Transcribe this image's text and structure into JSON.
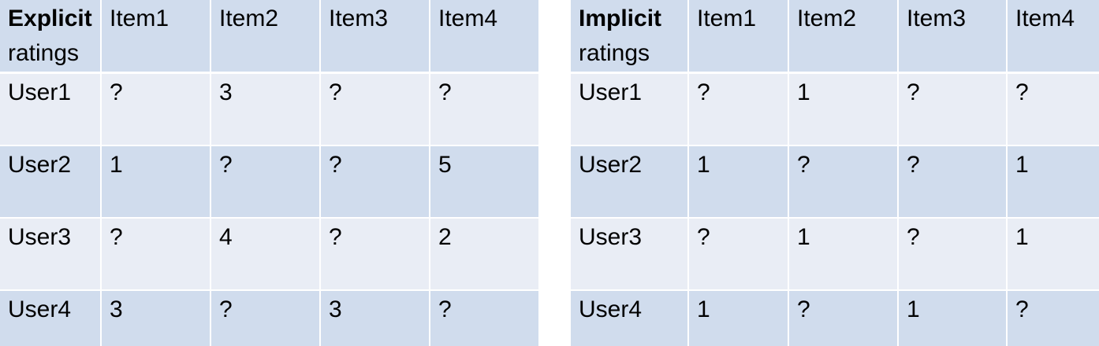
{
  "explicit_table": {
    "header": {
      "corner_bold": "Explicit",
      "corner_rest": "ratings",
      "items": [
        "Item1",
        "Item2",
        "Item3",
        "Item4"
      ]
    },
    "rows": [
      {
        "user": "User1",
        "values": [
          "?",
          "3",
          "?",
          "?"
        ]
      },
      {
        "user": "User2",
        "values": [
          "1",
          "?",
          "?",
          "5"
        ]
      },
      {
        "user": "User3",
        "values": [
          "?",
          "4",
          "?",
          "2"
        ]
      },
      {
        "user": "User4",
        "values": [
          "3",
          "?",
          "3",
          "?"
        ]
      }
    ]
  },
  "implicit_table": {
    "header": {
      "corner_bold": "Implicit",
      "corner_rest": "ratings",
      "items": [
        "Item1",
        "Item2",
        "Item3",
        "Item4"
      ]
    },
    "rows": [
      {
        "user": "User1",
        "values": [
          "?",
          "1",
          "?",
          "?"
        ]
      },
      {
        "user": "User2",
        "values": [
          "1",
          "?",
          "?",
          "1"
        ]
      },
      {
        "user": "User3",
        "values": [
          "?",
          "1",
          "?",
          "1"
        ]
      },
      {
        "user": "User4",
        "values": [
          "1",
          "?",
          "1",
          "?"
        ]
      }
    ]
  },
  "colors": {
    "header_bg": "#d0dced",
    "row_light": "#e9edf5",
    "row_dark": "#d0dced",
    "grid_line": "#ffffff"
  }
}
